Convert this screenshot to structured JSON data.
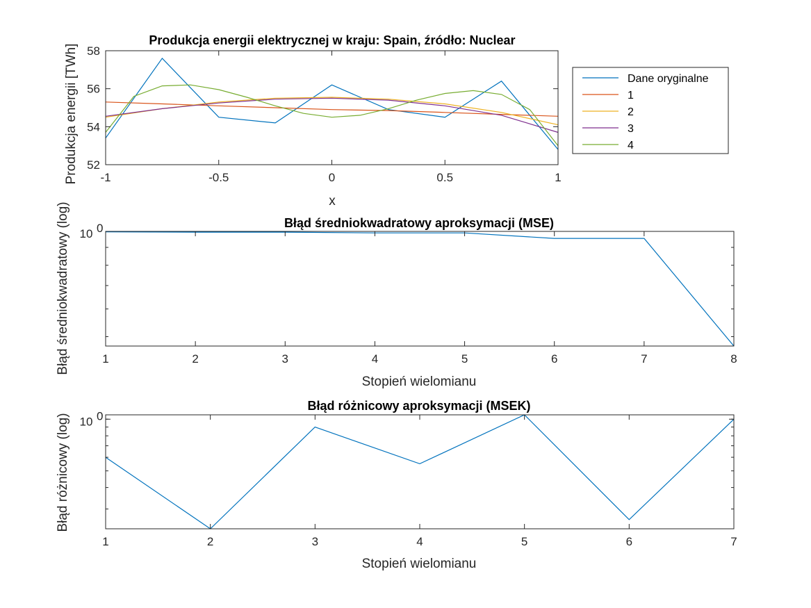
{
  "chart_data": [
    {
      "type": "line",
      "title": "Produkcja energii elektrycznej w kraju: Spain, źródło: Nuclear",
      "xlabel": "x",
      "ylabel": "Produkcja energii [TWh]",
      "xlim": [
        -1,
        1
      ],
      "ylim": [
        52,
        58
      ],
      "xticks": [
        "-1",
        "-0.5",
        "0",
        "0.5",
        "1"
      ],
      "yticks": [
        "52",
        "54",
        "56",
        "58"
      ],
      "legend_position": "outside-right",
      "series": [
        {
          "name": "Dane oryginalne",
          "color": "#0072BD",
          "x": [
            -1,
            -0.75,
            -0.5,
            -0.25,
            0,
            0.25,
            0.5,
            0.75,
            1
          ],
          "y": [
            53.4,
            57.6,
            54.5,
            54.2,
            56.2,
            54.9,
            54.5,
            56.4,
            52.8
          ]
        },
        {
          "name": "1",
          "color": "#D95319",
          "x": [
            -1,
            -0.75,
            -0.5,
            -0.25,
            0,
            0.25,
            0.5,
            0.75,
            1
          ],
          "y": [
            55.3,
            55.2,
            55.1,
            55.0,
            54.9,
            54.85,
            54.75,
            54.65,
            54.55
          ]
        },
        {
          "name": "2",
          "color": "#EDB120",
          "x": [
            -1,
            -0.75,
            -0.5,
            -0.25,
            0,
            0.25,
            0.5,
            0.75,
            1
          ],
          "y": [
            54.5,
            54.95,
            55.3,
            55.5,
            55.55,
            55.45,
            55.2,
            54.75,
            54.1
          ]
        },
        {
          "name": "3",
          "color": "#7E2F8E",
          "x": [
            -1,
            -0.75,
            -0.5,
            -0.25,
            0,
            0.25,
            0.5,
            0.75,
            1
          ],
          "y": [
            54.55,
            54.95,
            55.25,
            55.45,
            55.5,
            55.4,
            55.1,
            54.6,
            53.7
          ]
        },
        {
          "name": "4",
          "color": "#77AC30",
          "x": [
            -1,
            -0.875,
            -0.75,
            -0.625,
            -0.5,
            -0.375,
            -0.25,
            -0.125,
            0,
            0.125,
            0.25,
            0.375,
            0.5,
            0.625,
            0.75,
            0.875,
            1
          ],
          "y": [
            53.7,
            55.6,
            56.15,
            56.2,
            55.95,
            55.55,
            55.1,
            54.7,
            54.5,
            54.6,
            54.95,
            55.4,
            55.75,
            55.9,
            55.7,
            54.9,
            53.0
          ]
        }
      ]
    },
    {
      "type": "line",
      "title": "Błąd średniokwadratowy aproksymacji (MSE)",
      "xlabel": "Stopień wielomianu",
      "ylabel": "Błąd średniokwadratowy (log)",
      "yscale": "log",
      "xlim": [
        1,
        8
      ],
      "ylim": [
        0.47,
        1.0
      ],
      "xticks": [
        "1",
        "2",
        "3",
        "4",
        "5",
        "6",
        "7",
        "8"
      ],
      "ytick_label": "10",
      "ytick_exponent": "0",
      "series": [
        {
          "color": "#0072BD",
          "x": [
            1,
            2,
            3,
            4,
            5,
            6,
            7,
            8
          ],
          "y": [
            0.997,
            0.995,
            0.995,
            0.99,
            0.99,
            0.955,
            0.955,
            0.47
          ]
        }
      ]
    },
    {
      "type": "line",
      "title": "Błąd różnicowy aproksymacji (MSEK)",
      "xlabel": "Stopień wielomianu",
      "ylabel": "Błąd różnicowy (log)",
      "yscale": "log",
      "xlim": [
        1,
        7
      ],
      "ylim": [
        0.23,
        1.06
      ],
      "xticks": [
        "1",
        "2",
        "3",
        "4",
        "5",
        "6",
        "7"
      ],
      "ytick_label": "10",
      "ytick_exponent": "0",
      "series": [
        {
          "color": "#0072BD",
          "x": [
            1,
            2,
            3,
            4,
            5,
            6,
            7
          ],
          "y": [
            0.6,
            0.23,
            0.9,
            0.55,
            1.06,
            0.26,
            1.0
          ]
        }
      ]
    }
  ]
}
